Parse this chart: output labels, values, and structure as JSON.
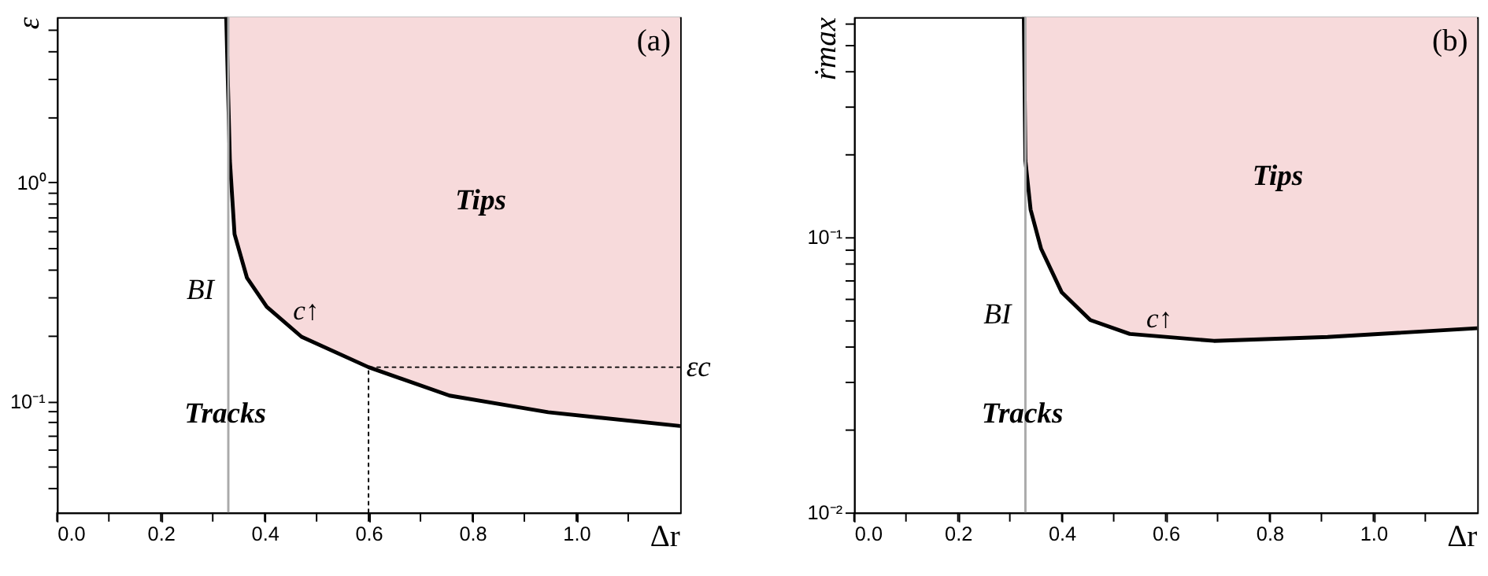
{
  "chart_data": [
    {
      "type": "line",
      "xlabel": "Δr",
      "ylabel": "ε",
      "log": "y",
      "grid": false,
      "xlim": [
        0,
        1.2
      ],
      "ylim": [
        0.031,
        5.7
      ],
      "xticks": [
        {
          "value": 0,
          "label": "0.0"
        },
        {
          "value": 0.1,
          "label": null
        },
        {
          "value": 0.2,
          "label": "0.2"
        },
        {
          "value": 0.3,
          "label": null
        },
        {
          "value": 0.4,
          "label": "0.4"
        },
        {
          "value": 0.5,
          "label": null
        },
        {
          "value": 0.6,
          "label": "0.6"
        },
        {
          "value": 0.7,
          "label": null
        },
        {
          "value": 0.8,
          "label": "0.8"
        },
        {
          "value": 0.9,
          "label": null
        },
        {
          "value": 1.0,
          "label": "1.0"
        },
        {
          "value": 1.1,
          "label": null
        }
      ],
      "yticks": [
        {
          "value": 0.04,
          "label": null
        },
        {
          "value": 0.05,
          "label": null
        },
        {
          "value": 0.06,
          "label": null
        },
        {
          "value": 0.07,
          "label": null
        },
        {
          "value": 0.08,
          "label": null
        },
        {
          "value": 0.09,
          "label": null
        },
        {
          "value": 0.1,
          "label": "10⁻¹"
        },
        {
          "value": 0.2,
          "label": null
        },
        {
          "value": 0.3,
          "label": null
        },
        {
          "value": 0.4,
          "label": null
        },
        {
          "value": 0.5,
          "label": null
        },
        {
          "value": 0.6,
          "label": null
        },
        {
          "value": 0.7,
          "label": null
        },
        {
          "value": 0.8,
          "label": null
        },
        {
          "value": 0.9,
          "label": null
        },
        {
          "value": 1,
          "label": "10⁰"
        },
        {
          "value": 2,
          "label": null
        },
        {
          "value": 3,
          "label": null
        },
        {
          "value": 4,
          "label": null
        },
        {
          "value": 5,
          "label": null
        }
      ],
      "series": [
        {
          "color": "#000000",
          "line_style": "solid",
          "x": [
            0.326,
            0.333,
            0.342,
            0.366,
            0.404,
            0.471,
            0.6,
            0.756,
            0.946,
            1.2
          ],
          "values": [
            5.7,
            1.26,
            0.58,
            0.366,
            0.27,
            0.197,
            0.143,
            0.106,
            0.089,
            0.077
          ],
          "lower": [
            5.7,
            1.26,
            0.58,
            0.366,
            0.27,
            0.197,
            0.143,
            0.106,
            0.089,
            0.077
          ],
          "upper": [
            5.7,
            5.7,
            5.7,
            5.7,
            5.7,
            5.7,
            5.7,
            5.7,
            5.7,
            5.7
          ]
        },
        {
          "color": "#000000",
          "line_style": "dotted",
          "x": [
            0.6,
            0.6,
            1.2
          ],
          "values": [
            0.031,
            0.143,
            0.143
          ]
        }
      ],
      "ref_lines": [
        {
          "axis": "x",
          "value": 0.33,
          "color": "#aaaaaa",
          "line_style": "solid"
        }
      ],
      "annotations": [
        "(a)",
        "Tips",
        "Tracks",
        "BI",
        "c↑",
        {
          "text": "εc",
          "x": 1.2,
          "y": 0.143
        }
      ]
    },
    {
      "type": "line",
      "xlabel": "Δr",
      "ylabel": "ṙmax",
      "log": "y",
      "grid": false,
      "xlim": [
        0,
        1.2
      ],
      "ylim": [
        0.01,
        0.63
      ],
      "xticks": [
        {
          "value": 0,
          "label": "0.0"
        },
        {
          "value": 0.1,
          "label": null
        },
        {
          "value": 0.2,
          "label": "0.2"
        },
        {
          "value": 0.3,
          "label": null
        },
        {
          "value": 0.4,
          "label": "0.4"
        },
        {
          "value": 0.5,
          "label": null
        },
        {
          "value": 0.6,
          "label": "0.6"
        },
        {
          "value": 0.7,
          "label": null
        },
        {
          "value": 0.8,
          "label": "0.8"
        },
        {
          "value": 0.9,
          "label": null
        },
        {
          "value": 1.0,
          "label": "1.0"
        },
        {
          "value": 1.1,
          "label": null
        }
      ],
      "yticks": [
        {
          "value": 0.01,
          "label": "10⁻²"
        },
        {
          "value": 0.02,
          "label": null
        },
        {
          "value": 0.03,
          "label": null
        },
        {
          "value": 0.04,
          "label": null
        },
        {
          "value": 0.05,
          "label": null
        },
        {
          "value": 0.06,
          "label": null
        },
        {
          "value": 0.07,
          "label": null
        },
        {
          "value": 0.08,
          "label": null
        },
        {
          "value": 0.09,
          "label": null
        },
        {
          "value": 0.1,
          "label": "10⁻¹"
        },
        {
          "value": 0.2,
          "label": null
        },
        {
          "value": 0.3,
          "label": null
        },
        {
          "value": 0.4,
          "label": null
        },
        {
          "value": 0.5,
          "label": null
        },
        {
          "value": 0.6,
          "label": null
        }
      ],
      "series": [
        {
          "color": "#000000",
          "line_style": "solid",
          "x": [
            0.327,
            0.33,
            0.34,
            0.36,
            0.4,
            0.455,
            0.531,
            0.693,
            0.912,
            1.2
          ],
          "values": [
            0.63,
            0.19,
            0.126,
            0.091,
            0.063,
            0.05,
            0.0445,
            0.042,
            0.0434,
            0.0467
          ],
          "lower": [
            0.63,
            0.19,
            0.126,
            0.091,
            0.063,
            0.05,
            0.0445,
            0.042,
            0.0434,
            0.0467
          ],
          "upper": [
            0.63,
            0.63,
            0.63,
            0.63,
            0.63,
            0.63,
            0.63,
            0.63,
            0.63,
            0.63
          ]
        }
      ],
      "ref_lines": [
        {
          "axis": "x",
          "value": 0.33,
          "color": "#aaaaaa",
          "line_style": "solid"
        }
      ],
      "annotations": [
        "(b)",
        "Tips",
        "Tracks",
        "BI",
        "c↑"
      ]
    }
  ]
}
